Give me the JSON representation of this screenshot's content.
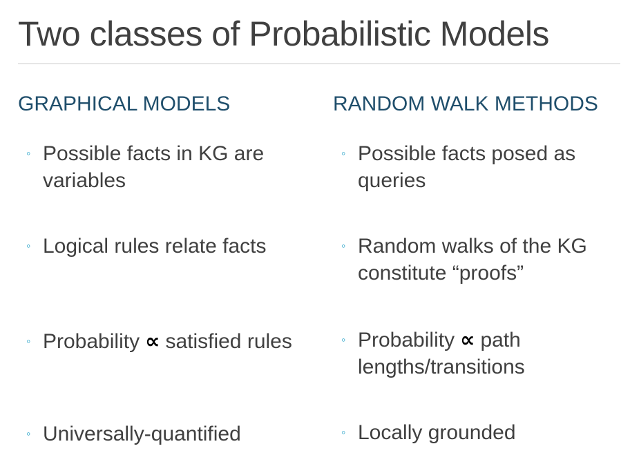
{
  "slide": {
    "title": "Two classes of Probabilistic Models"
  },
  "left": {
    "heading": "GRAPHICAL MODELS",
    "bullets": [
      {
        "text": "Possible facts in KG are variables"
      },
      {
        "text": "Logical rules relate facts"
      },
      {
        "before": "Probability",
        "symbol": "∝",
        "after": "satisfied rules"
      },
      {
        "text": "Universally-quantified"
      }
    ]
  },
  "right": {
    "heading": "RANDOM WALK METHODS",
    "bullets": [
      {
        "text": "Possible facts posed as queries"
      },
      {
        "text": "Random walks of the KG constitute “proofs”"
      },
      {
        "before": "Probability",
        "symbol": "∝",
        "after": "path lengths/transitions"
      },
      {
        "text": "Locally grounded"
      }
    ]
  },
  "colors": {
    "heading": "#1f4e6b",
    "bullet_dot": "#2aa4c9",
    "body_text": "#404040",
    "rule": "#c8c8c8"
  },
  "icons": {
    "bullet": "hollow-circle-bullet-icon"
  }
}
